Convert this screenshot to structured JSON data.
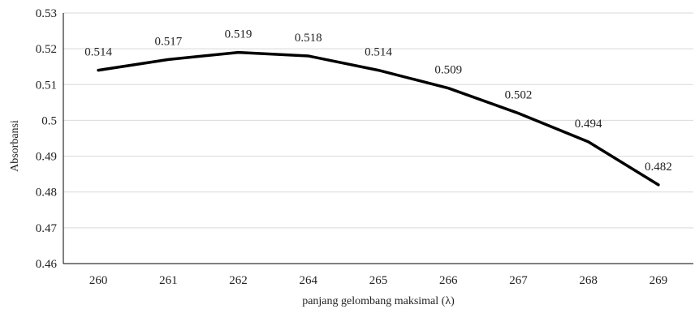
{
  "chart_data": {
    "type": "line",
    "categories": [
      "260",
      "261",
      "262",
      "264",
      "265",
      "266",
      "267",
      "268",
      "269"
    ],
    "series": [
      {
        "values": [
          0.514,
          0.517,
          0.519,
          0.518,
          0.514,
          0.509,
          0.502,
          0.494,
          0.482
        ]
      }
    ],
    "data_labels": [
      "0.514",
      "0.517",
      "0.519",
      "0.518",
      "0.514",
      "0.509",
      "0.502",
      "0.494",
      "0.482"
    ],
    "y_ticks": [
      "0.46",
      "0.47",
      "0.48",
      "0.49",
      "0.5",
      "0.51",
      "0.52",
      "0.53"
    ],
    "ylim": [
      0.46,
      0.53
    ],
    "xlabel": "panjang gelombang maksimal (λ)",
    "ylabel": "Absorbansi",
    "grid": "horizontal",
    "legend": "none",
    "line_color": "#000000"
  }
}
